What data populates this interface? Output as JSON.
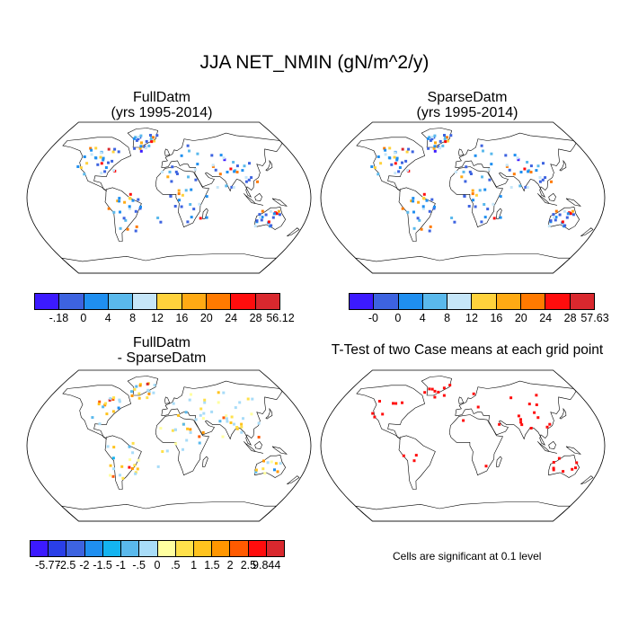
{
  "title": "JJA NET_NMIN (gN/m^2/y)",
  "panels": [
    {
      "title_line1": "FullDatm",
      "title_line2": "(yrs 1995-2014)"
    },
    {
      "title_line1": "SparseDatm",
      "title_line2": "(yrs 1995-2014)"
    },
    {
      "title_line1": "FullDatm",
      "title_line2": "- SparseDatm"
    },
    {
      "title_line1": "T-Test of two Case means at each grid point",
      "title_line2": ""
    }
  ],
  "note": "Cells are significant at 0.1 level",
  "chart_data": [
    {
      "type": "heatmap",
      "title": "FullDatm (yrs 1995-2014)",
      "projection": "Robinson",
      "colorbar": {
        "labels": [
          "-.18",
          "0",
          "4",
          "8",
          "12",
          "16",
          "20",
          "24",
          "28",
          "56.12"
        ],
        "colors": [
          "#3c1aff",
          "#3d63e0",
          "#1f8ff0",
          "#5ab9ec",
          "#c6e6f8",
          "#ffd23c",
          "#ffaa14",
          "#ff7a00",
          "#ff0d0d",
          "#d9282e"
        ]
      }
    },
    {
      "type": "heatmap",
      "title": "SparseDatm (yrs 1995-2014)",
      "projection": "Robinson",
      "colorbar": {
        "labels": [
          "-0",
          "0",
          "4",
          "8",
          "12",
          "16",
          "20",
          "24",
          "28",
          "57.63"
        ],
        "colors": [
          "#3c1aff",
          "#3d63e0",
          "#1f8ff0",
          "#5ab9ec",
          "#c6e6f8",
          "#ffd23c",
          "#ffaa14",
          "#ff7a00",
          "#ff0d0d",
          "#d9282e"
        ]
      }
    },
    {
      "type": "heatmap",
      "title": "FullDatm - SparseDatm",
      "projection": "Robinson",
      "colorbar": {
        "labels": [
          "-5.77",
          "-2.5",
          "-2",
          "-1.5",
          "-1",
          "-.5",
          "0",
          ".5",
          "1",
          "1.5",
          "2",
          "2.5",
          "9.844"
        ],
        "colors": [
          "#3c1aff",
          "#2a3fe8",
          "#3d63e0",
          "#1f8ff0",
          "#14b4f0",
          "#5ab9ec",
          "#a8dcf8",
          "#ffffa0",
          "#ffe14b",
          "#ffc31e",
          "#ff9600",
          "#ff5a00",
          "#ff0d0d",
          "#d9282e"
        ]
      }
    },
    {
      "type": "heatmap",
      "title": "T-Test of two Case means at each grid point",
      "projection": "Robinson",
      "marker_color": "#ff0d0d"
    }
  ]
}
